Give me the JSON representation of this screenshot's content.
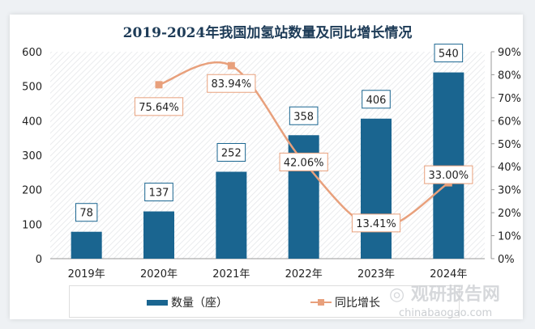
{
  "chart_data": {
    "type": "bar+line",
    "title": "2019-2024年我国加氢站数量及同比增长情况",
    "categories": [
      "2019年",
      "2020年",
      "2021年",
      "2022年",
      "2023年",
      "2024年"
    ],
    "series": [
      {
        "name": "数量（座）",
        "type": "bar",
        "axis": "left",
        "values": [
          78,
          137,
          252,
          358,
          406,
          540
        ],
        "labels": [
          "78",
          "137",
          "252",
          "358",
          "406",
          "540"
        ],
        "color": "#1a6590"
      },
      {
        "name": "同比增长",
        "type": "line",
        "axis": "right",
        "values": [
          null,
          75.64,
          83.94,
          42.06,
          13.41,
          33.0
        ],
        "labels": [
          "",
          "75.64%",
          "83.94%",
          "42.06%",
          "13.41%",
          "33.00%"
        ],
        "color": "#e8a07c"
      }
    ],
    "left_axis": {
      "ylim": [
        0,
        600
      ],
      "ticks": [
        "0",
        "100",
        "200",
        "300",
        "400",
        "500",
        "600"
      ]
    },
    "right_axis": {
      "ylim": [
        0,
        90
      ],
      "ticks": [
        "0%",
        "10%",
        "20%",
        "30%",
        "40%",
        "50%",
        "60%",
        "70%",
        "80%",
        "90%"
      ]
    },
    "legend": "bottom",
    "grid": false
  },
  "watermark": {
    "name": "观研报告网",
    "url": "chinabaogao.com"
  }
}
